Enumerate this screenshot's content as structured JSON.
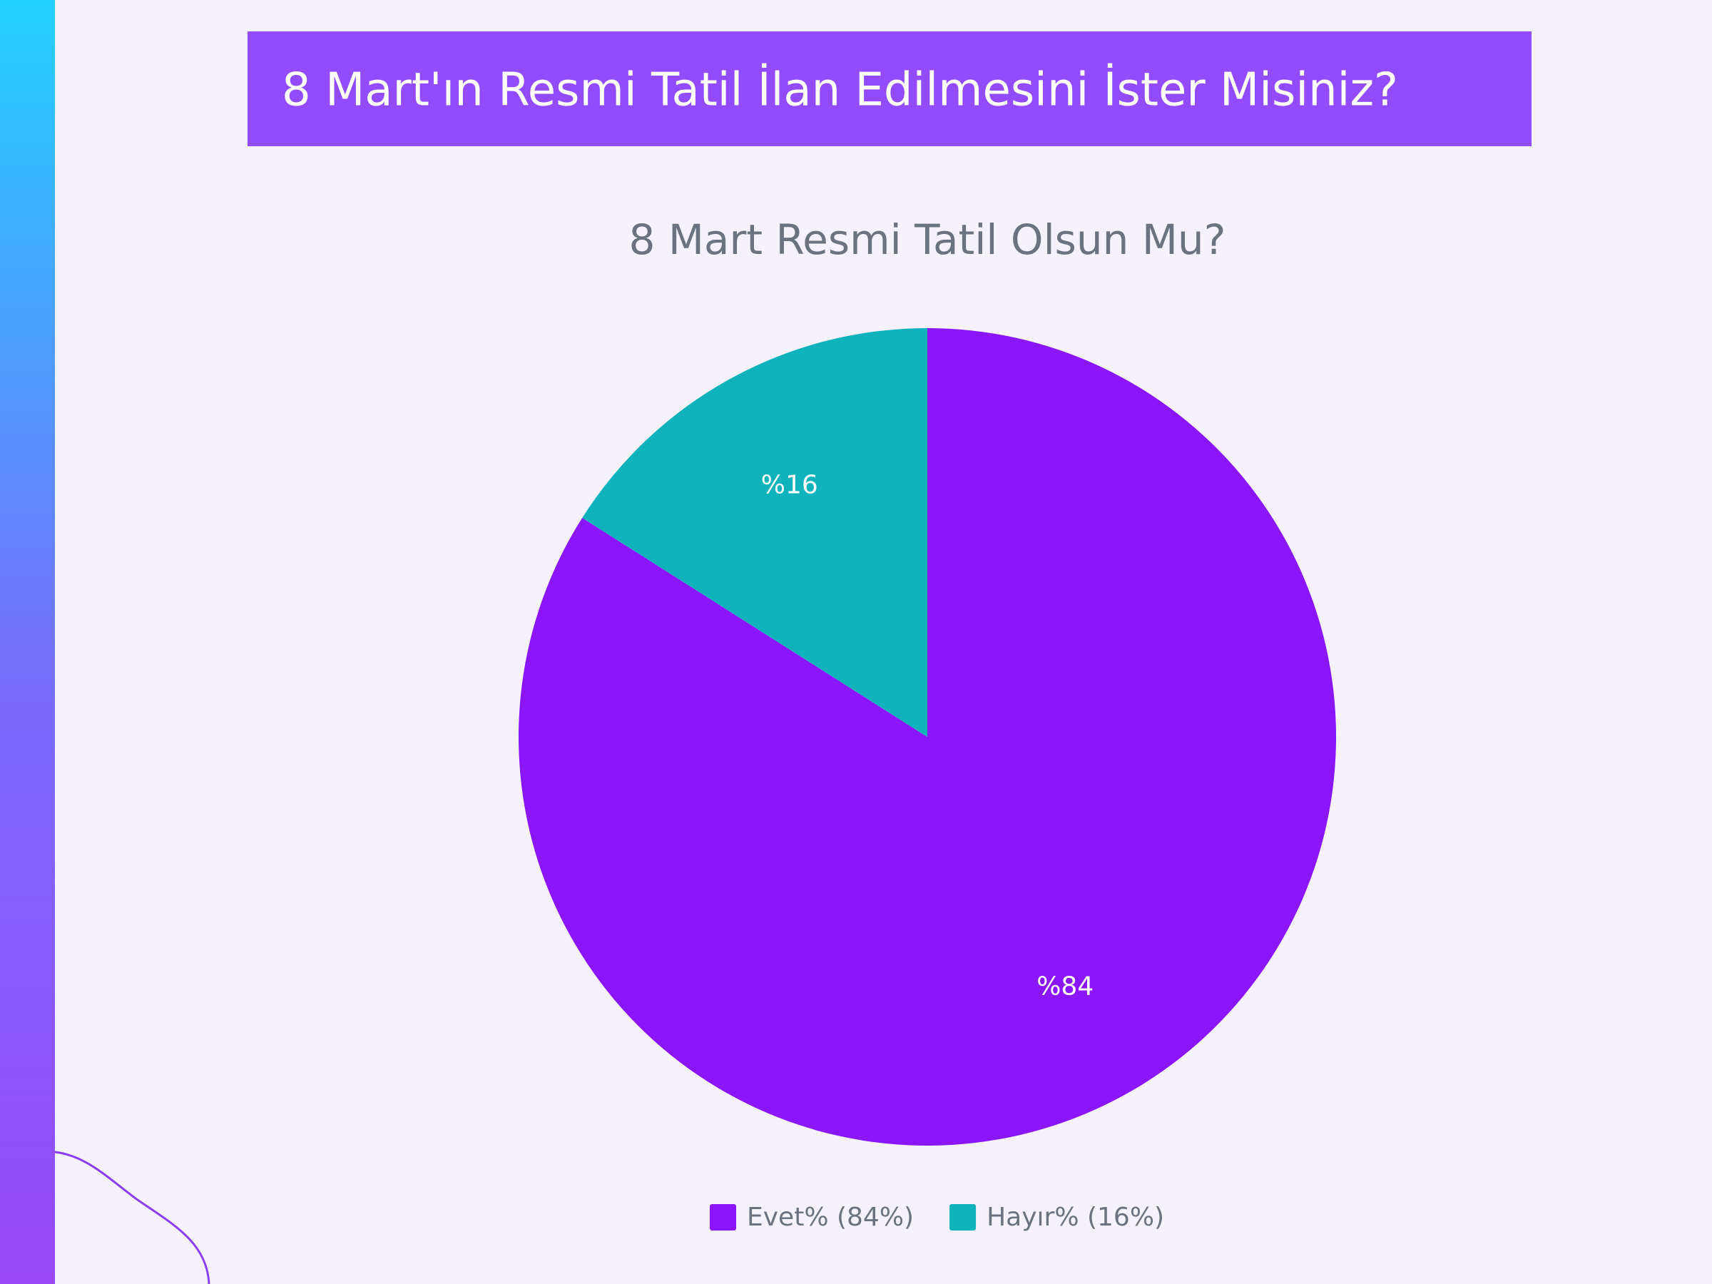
{
  "header": {
    "title": "8 Mart'ın Resmi Tatil İlan Edilmesini İster Misiniz?"
  },
  "chart_data": {
    "type": "pie",
    "title": "8 Mart Resmi Tatil Olsun Mu?",
    "categories": [
      "Evet% (84%)",
      "Hayır% (16%)"
    ],
    "values": [
      84,
      16
    ],
    "value_labels": [
      "%84",
      "%16"
    ],
    "colors": [
      "#8c16fb",
      "#10b2bb"
    ]
  }
}
